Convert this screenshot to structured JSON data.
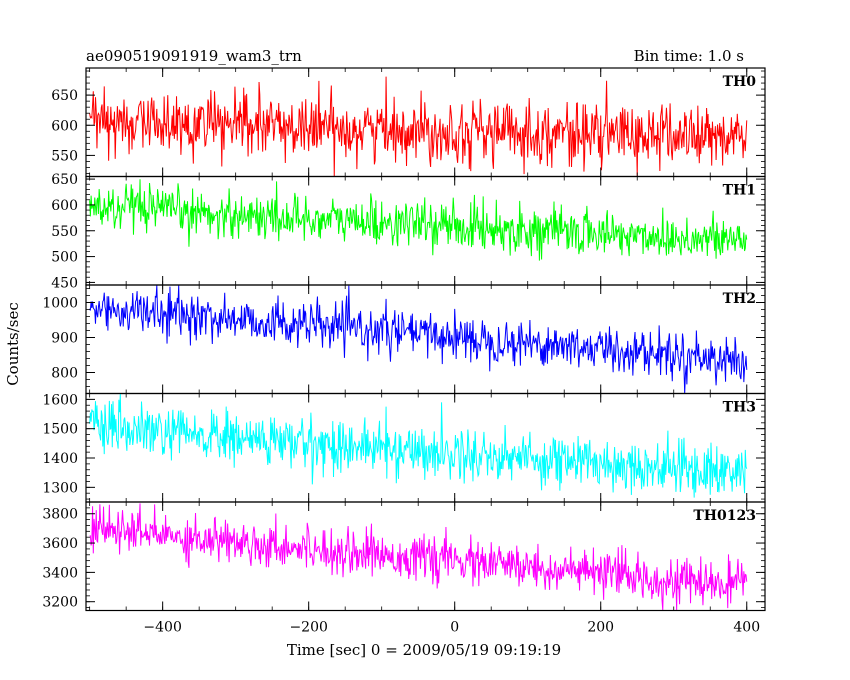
{
  "chart_data": {
    "type": "line",
    "title": "ae090519091919_wam3_trn",
    "subtitle": "Bin time: 1.0 s",
    "xlabel": "Time [sec] 0 = 2009/05/19 09:19:19",
    "ylabel": "Counts/sec",
    "xlim": [
      -505,
      425
    ],
    "x_ticks": [
      -400,
      -200,
      0,
      200,
      400
    ],
    "x_range_of_data": [
      -500,
      400
    ],
    "bin_time": 1.0,
    "grid": false,
    "legend": "none",
    "panels": [
      {
        "name": "TH0",
        "color": "#ff0000",
        "ylim": [
          515,
          695
        ],
        "y_ticks": [
          550,
          600,
          650
        ],
        "start_mean": 605,
        "end_mean": 580,
        "noise": 26
      },
      {
        "name": "TH1",
        "color": "#00ff00",
        "ylim": [
          445,
          655
        ],
        "y_ticks": [
          450,
          500,
          550,
          600,
          650
        ],
        "start_mean": 595,
        "end_mean": 530,
        "noise": 22
      },
      {
        "name": "TH2",
        "color": "#0000ff",
        "ylim": [
          740,
          1050
        ],
        "y_ticks": [
          800,
          900,
          1000
        ],
        "start_mean": 985,
        "end_mean": 835,
        "noise": 32
      },
      {
        "name": "TH3",
        "color": "#00ffff",
        "ylim": [
          1250,
          1620
        ],
        "y_ticks": [
          1300,
          1400,
          1500,
          1600
        ],
        "start_mean": 1500,
        "end_mean": 1350,
        "noise": 45
      },
      {
        "name": "TH0123",
        "color": "#ff00ff",
        "ylim": [
          3140,
          3880
        ],
        "y_ticks": [
          3200,
          3400,
          3600,
          3800
        ],
        "start_mean": 3700,
        "end_mean": 3300,
        "noise": 75
      }
    ]
  }
}
